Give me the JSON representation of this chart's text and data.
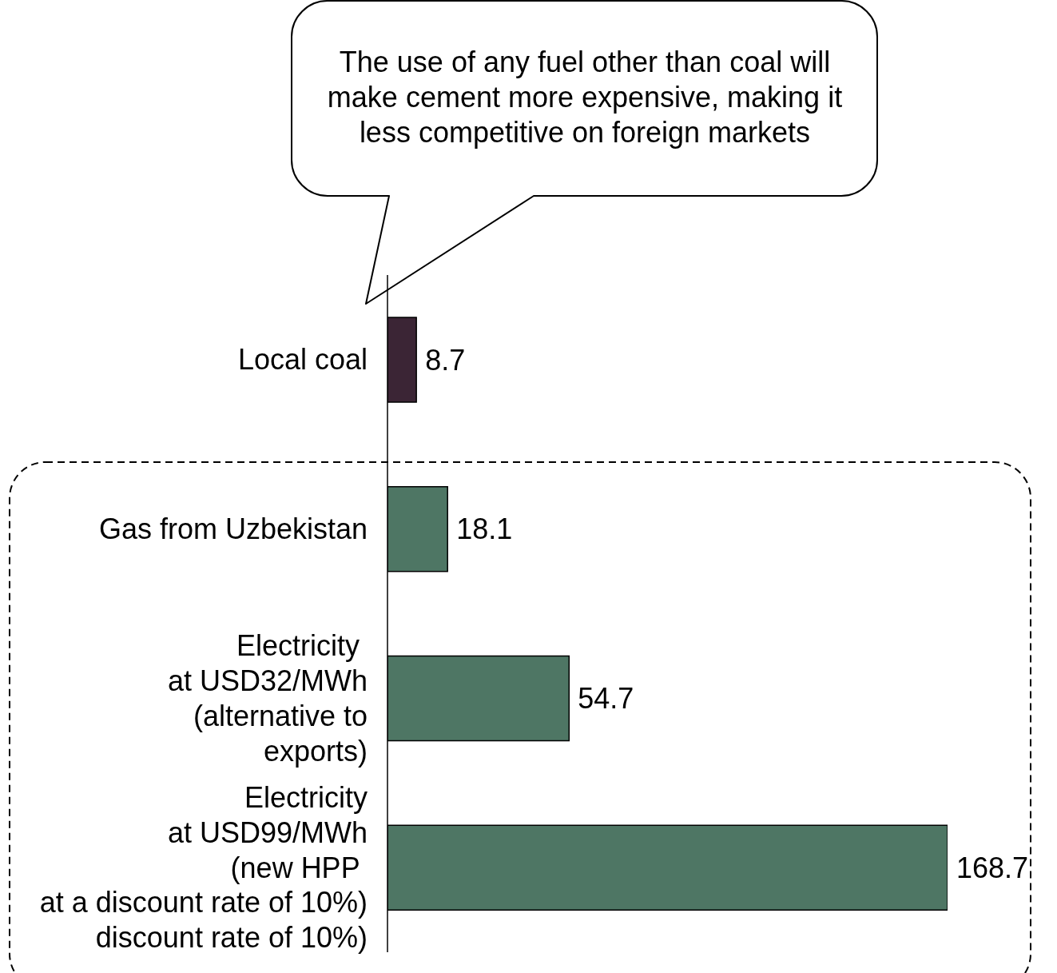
{
  "chart_data": {
    "type": "bar",
    "orientation": "horizontal",
    "categories": [
      "Local coal",
      "Gas from Uzbekistan",
      "Electricity \nat USD32/MWh\n(alternative to\nexports)",
      "Electricity\nat USD99/MWh\n(new HPP \nat a discount rate of 10%)\ndiscount rate of 10%)"
    ],
    "values": [
      8.7,
      18.1,
      54.7,
      168.7
    ],
    "colors": [
      "#3b2535",
      "#4e7664",
      "#4e7664",
      "#4e7664"
    ],
    "data_labels": true,
    "annotations": [
      "The use of any fuel other than coal will make cement more expensive, making it less competitive on foreign markets"
    ]
  }
}
